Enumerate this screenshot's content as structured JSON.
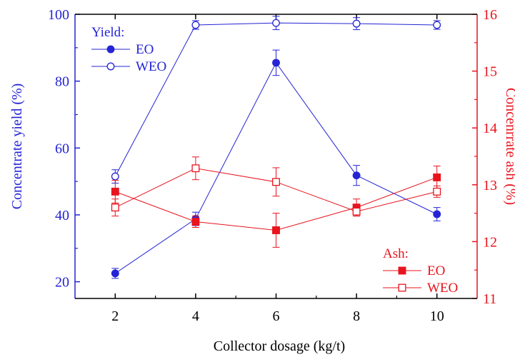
{
  "chart_data": {
    "type": "line",
    "xlabel": "Collector dosage (kg/t)",
    "ylabel_left": "Concentrate yield (%)",
    "ylabel_right": "Concenrrate ash (%)",
    "x": [
      2,
      4,
      6,
      8,
      10
    ],
    "xlim": [
      1,
      11
    ],
    "ylim_left": [
      15,
      100
    ],
    "ylim_right": [
      11,
      16
    ],
    "x_ticks": [
      "2",
      "4",
      "6",
      "8",
      "10"
    ],
    "y_ticks_left": [
      "20",
      "40",
      "60",
      "80",
      "100"
    ],
    "y_ticks_right": [
      "11",
      "12",
      "13",
      "14",
      "15",
      "16"
    ],
    "colors": {
      "yield": "#2424d6",
      "ash": "#e8141e"
    },
    "legend_yield": {
      "title": "Yield:",
      "placement": "top-left"
    },
    "legend_ash": {
      "title": "Ash:",
      "placement": "bottom-right"
    },
    "series": [
      {
        "name": "EO",
        "group": "yield",
        "axis": "left",
        "marker": "filled-circle",
        "values": [
          22.5,
          38.8,
          85.5,
          51.8,
          40.2
        ],
        "errors": [
          1.5,
          2.0,
          3.8,
          3.0,
          2.0
        ]
      },
      {
        "name": "WEO",
        "group": "yield",
        "axis": "left",
        "marker": "open-circle",
        "values": [
          51.5,
          96.8,
          97.4,
          97.2,
          96.8
        ],
        "errors": [
          2.0,
          1.3,
          2.0,
          1.8,
          1.3
        ]
      },
      {
        "name": "EO",
        "group": "ash",
        "axis": "right",
        "marker": "filled-square",
        "values": [
          12.88,
          12.35,
          12.2,
          12.6,
          13.13
        ],
        "errors": [
          0.2,
          0.1,
          0.3,
          0.15,
          0.2
        ]
      },
      {
        "name": "WEO",
        "group": "ash",
        "axis": "right",
        "marker": "open-square",
        "values": [
          12.6,
          13.29,
          13.05,
          12.53,
          12.88
        ],
        "errors": [
          0.15,
          0.2,
          0.25,
          0.08,
          0.1
        ]
      }
    ]
  }
}
